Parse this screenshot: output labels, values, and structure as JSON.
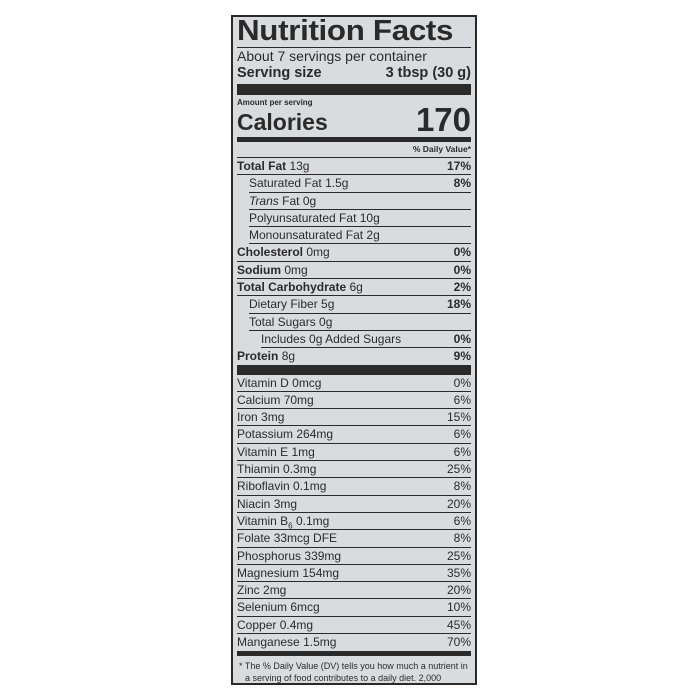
{
  "title": "Nutrition Facts",
  "servings_per_container": "About 7 servings per container",
  "serving_size": {
    "label": "Serving size",
    "value": "3 tbsp (30 g)"
  },
  "amount_per_serving": "Amount per serving",
  "calories": {
    "label": "Calories",
    "value": "170"
  },
  "dv_header": "% Daily Value*",
  "nutrients": [
    {
      "name": "Total Fat",
      "amount": "13g",
      "dv": "17%",
      "bold": true,
      "indent": 0
    },
    {
      "name": "Saturated Fat",
      "amount": "1.5g",
      "dv": "8%",
      "indent": 1
    },
    {
      "name": "Trans",
      "name_suffix": "Fat",
      "amount": "0g",
      "dv": "",
      "indent": 1,
      "italic": true
    },
    {
      "name": "Polyunsaturated Fat",
      "amount": "10g",
      "dv": "",
      "indent": 1
    },
    {
      "name": "Monounsaturated Fat",
      "amount": "2g",
      "dv": "",
      "indent": 1
    },
    {
      "name": "Cholesterol",
      "amount": "0mg",
      "dv": "0%",
      "bold": true,
      "indent": 0
    },
    {
      "name": "Sodium",
      "amount": "0mg",
      "dv": "0%",
      "bold": true,
      "indent": 0
    },
    {
      "name": "Total Carbohydrate",
      "amount": "6g",
      "dv": "2%",
      "bold": true,
      "indent": 0
    },
    {
      "name": "Dietary Fiber",
      "amount": "5g",
      "dv": "18%",
      "indent": 1
    },
    {
      "name": "Total Sugars",
      "amount": "0g",
      "dv": "",
      "indent": 1
    },
    {
      "name": "Includes",
      "amount": "0g Added Sugars",
      "dv": "0%",
      "indent": 2
    },
    {
      "name": "Protein",
      "amount": "8g",
      "dv": "9%",
      "bold": true,
      "indent": 0
    }
  ],
  "vitamins": [
    {
      "name": "Vitamin D",
      "amount": "0mcg",
      "dv": "0%"
    },
    {
      "name": "Calcium",
      "amount": "70mg",
      "dv": "6%"
    },
    {
      "name": "Iron",
      "amount": "3mg",
      "dv": "15%"
    },
    {
      "name": "Potassium",
      "amount": "264mg",
      "dv": "6%"
    },
    {
      "name": "Vitamin E",
      "amount": "1mg",
      "dv": "6%"
    },
    {
      "name": "Thiamin",
      "amount": "0.3mg",
      "dv": "25%"
    },
    {
      "name": "Riboflavin",
      "amount": "0.1mg",
      "dv": "8%"
    },
    {
      "name": "Niacin",
      "amount": "3mg",
      "dv": "20%"
    },
    {
      "name": "Vitamin B",
      "sub": "6",
      "amount": "0.1mg",
      "dv": "6%"
    },
    {
      "name": "Folate",
      "amount": "33mcg DFE",
      "dv": "8%"
    },
    {
      "name": "Phosphorus",
      "amount": "339mg",
      "dv": "25%"
    },
    {
      "name": "Magnesium",
      "amount": "154mg",
      "dv": "35%"
    },
    {
      "name": "Zinc",
      "amount": "2mg",
      "dv": "20%"
    },
    {
      "name": "Selenium",
      "amount": "6mcg",
      "dv": "10%"
    },
    {
      "name": "Copper",
      "amount": "0.4mg",
      "dv": "45%"
    },
    {
      "name": "Manganese",
      "amount": "1.5mg",
      "dv": "70%"
    }
  ],
  "footnote": "* The % Daily Value (DV) tells you how much a nutrient in a serving of food contributes to a daily diet. 2,000 calories a day is used for general nutrition advice."
}
